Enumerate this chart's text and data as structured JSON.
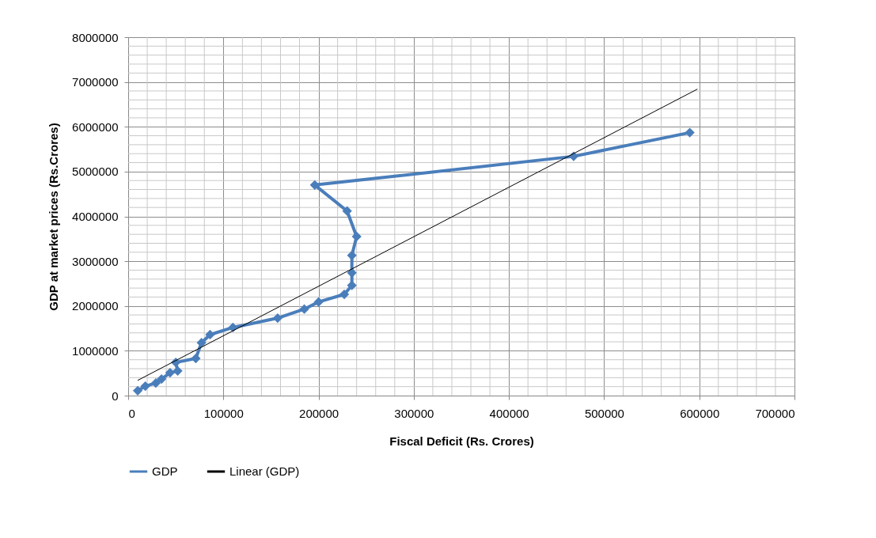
{
  "chart_data": {
    "type": "line",
    "xlabel": "Fiscal Deficit (Rs. Crores)",
    "ylabel": "GDP at market prices (Rs.Crores)",
    "xlim": [
      0,
      700000
    ],
    "xticks": [
      0,
      100000,
      200000,
      300000,
      400000,
      500000,
      600000,
      700000
    ],
    "ylim": [
      0,
      8000000
    ],
    "yticks": [
      0,
      1000000,
      2000000,
      3000000,
      4000000,
      5000000,
      6000000,
      7000000,
      8000000
    ],
    "grid": true,
    "legend": "bottom",
    "line_style": "solid",
    "series": [
      {
        "name": "GDP",
        "color": "#4a7ebb",
        "marker": "diamond",
        "x": [
          10000,
          18000,
          29000,
          35000,
          44000,
          52000,
          50000,
          71000,
          77000,
          86000,
          110000,
          157000,
          185000,
          200000,
          227000,
          235000,
          235000,
          235000,
          240000,
          230000,
          196000,
          468000,
          590000
        ],
        "values": [
          110000,
          210000,
          280000,
          370000,
          510000,
          550000,
          740000,
          830000,
          1180000,
          1360000,
          1520000,
          1730000,
          1930000,
          2090000,
          2260000,
          2460000,
          2740000,
          3130000,
          3550000,
          4120000,
          4700000,
          5340000,
          5870000
        ]
      },
      {
        "name": "Linear (GDP)",
        "color": "#000000",
        "marker": "none",
        "x": [
          10000,
          598000
        ],
        "values": [
          340000,
          6840000
        ]
      }
    ]
  }
}
